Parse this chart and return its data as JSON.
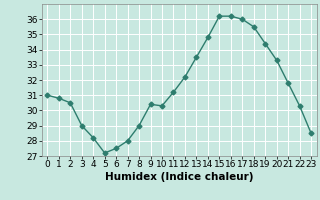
{
  "x": [
    0,
    1,
    2,
    3,
    4,
    5,
    6,
    7,
    8,
    9,
    10,
    11,
    12,
    13,
    14,
    15,
    16,
    17,
    18,
    19,
    20,
    21,
    22,
    23
  ],
  "y": [
    31.0,
    30.8,
    30.5,
    29.0,
    28.2,
    27.2,
    27.5,
    28.0,
    29.0,
    30.4,
    30.3,
    31.2,
    32.2,
    33.5,
    34.8,
    36.2,
    36.2,
    36.0,
    35.5,
    34.4,
    33.3,
    31.8,
    30.3,
    28.5
  ],
  "xlabel": "Humidex (Indice chaleur)",
  "ylim": [
    27,
    37
  ],
  "xlim": [
    -0.5,
    23.5
  ],
  "yticks": [
    27,
    28,
    29,
    30,
    31,
    32,
    33,
    34,
    35,
    36
  ],
  "xticks": [
    0,
    1,
    2,
    3,
    4,
    5,
    6,
    7,
    8,
    9,
    10,
    11,
    12,
    13,
    14,
    15,
    16,
    17,
    18,
    19,
    20,
    21,
    22,
    23
  ],
  "line_color": "#2e7d6e",
  "marker": "D",
  "marker_size": 2.5,
  "bg_color": "#c8e8e0",
  "grid_color": "#ffffff",
  "tick_label_fontsize": 6.5,
  "xlabel_fontsize": 7.5
}
